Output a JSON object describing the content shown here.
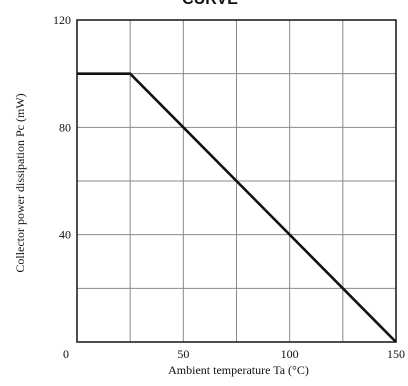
{
  "chart_data": {
    "type": "line",
    "title": "CURVE",
    "xlabel": "Ambient temperature Ta (°C)",
    "ylabel": "Collector power dissipation Pc (mW)",
    "xlim": [
      0,
      150
    ],
    "ylim": [
      0,
      120
    ],
    "x_ticks": [
      0,
      50,
      100,
      150
    ],
    "y_ticks": [
      0,
      40,
      80,
      120
    ],
    "grid": true,
    "grid_x": [
      0,
      25,
      50,
      75,
      100,
      125,
      150
    ],
    "grid_y": [
      0,
      20,
      40,
      60,
      80,
      100,
      120
    ],
    "series": [
      {
        "x": [
          0,
          25,
          150
        ],
        "y": [
          100,
          100,
          0
        ]
      }
    ],
    "colors": {
      "line": "#111111",
      "grid": "#8a8a8a",
      "frame": "#222222"
    }
  }
}
